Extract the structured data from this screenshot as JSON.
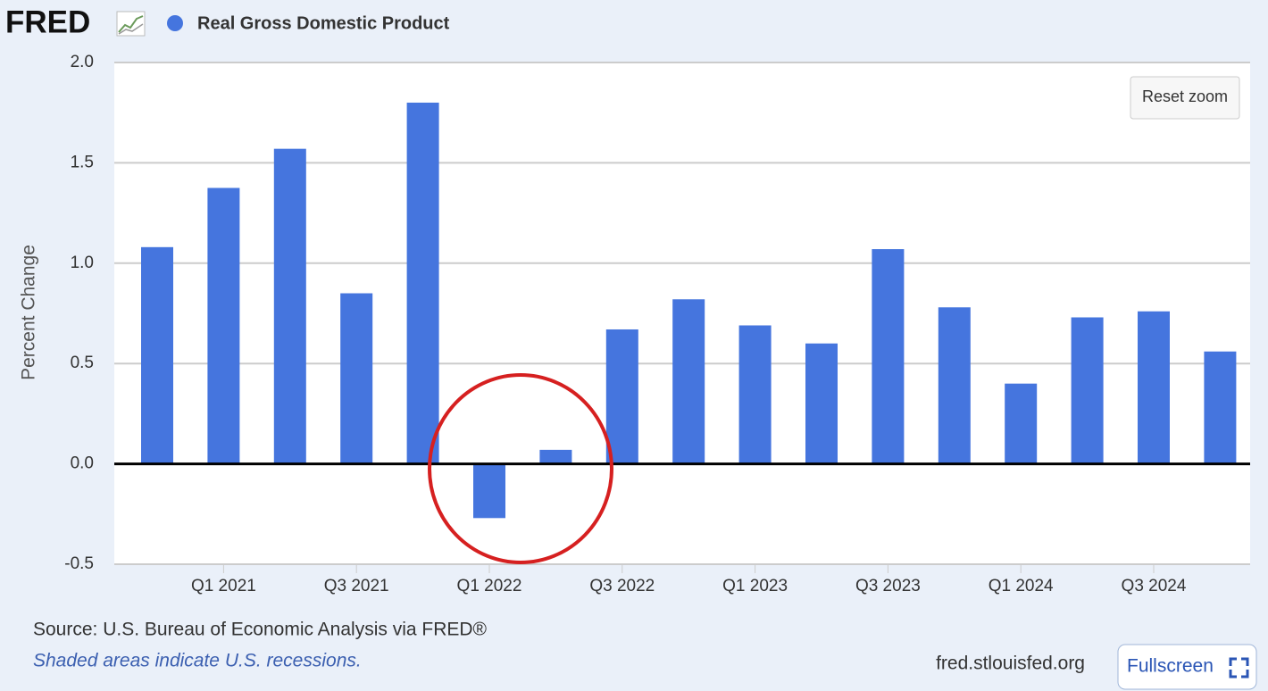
{
  "page": {
    "logo": "FRED",
    "source": "Source: U.S. Bureau of Economic Analysis via FRED®",
    "note": "Shaded areas indicate U.S. recessions.",
    "site": "fred.stlouisfed.org",
    "reset_zoom": "Reset zoom",
    "fullscreen": "Fullscreen"
  },
  "chart_data": {
    "type": "bar",
    "ylabel": "Percent Change",
    "series": [
      {
        "name": "Real Gross Domestic Product",
        "color": "#4575de",
        "values": [
          1.08,
          1.375,
          1.57,
          0.85,
          1.8,
          -0.27,
          0.07,
          0.67,
          0.82,
          0.69,
          0.6,
          1.07,
          0.78,
          0.4,
          0.73,
          0.76,
          0.56
        ]
      }
    ],
    "categories": [
      null,
      "Q1 2021",
      null,
      "Q3 2021",
      null,
      "Q1 2022",
      null,
      "Q3 2022",
      null,
      "Q1 2023",
      null,
      "Q3 2023",
      null,
      "Q1 2024",
      null,
      "Q3 2024",
      null
    ],
    "ylim": [
      -0.5,
      2.0
    ],
    "yticks": [
      -0.5,
      {
        "value": 0,
        "label": "0.0"
      },
      0.5,
      {
        "value": 1,
        "label": "1.0"
      },
      {
        "value": 1.5,
        "label": "1.5"
      },
      {
        "value": 2,
        "label": "2.0"
      }
    ],
    "grid": true
  }
}
